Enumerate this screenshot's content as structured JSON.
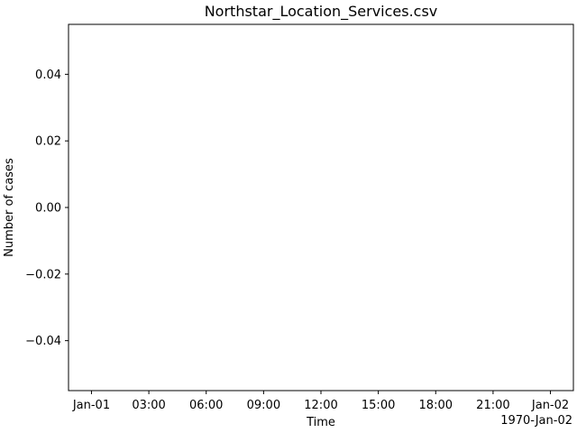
{
  "chart_data": {
    "type": "line",
    "title": "Northstar_Location_Services.csv",
    "xlabel": "Time",
    "ylabel": "Number of cases",
    "x_offset_label": "1970-Jan-02",
    "series": [],
    "x_ticks": [
      "Jan-01",
      "03:00",
      "06:00",
      "09:00",
      "12:00",
      "15:00",
      "18:00",
      "21:00",
      "Jan-02"
    ],
    "y_ticks": [
      "0.04",
      "0.02",
      "0.00",
      "−0.02",
      "−0.04"
    ],
    "x_tick_values": [
      "1970-01-01 00:00",
      "1970-01-01 03:00",
      "1970-01-01 06:00",
      "1970-01-01 09:00",
      "1970-01-01 12:00",
      "1970-01-01 15:00",
      "1970-01-01 18:00",
      "1970-01-01 21:00",
      "1970-01-02 00:00"
    ],
    "y_tick_values": [
      0.04,
      0.02,
      0.0,
      -0.02,
      -0.04
    ],
    "xlim": [
      "1969-12-31 22:48",
      "1970-01-02 01:12"
    ],
    "ylim": [
      -0.055,
      0.055
    ],
    "grid": false,
    "legend": "none"
  }
}
